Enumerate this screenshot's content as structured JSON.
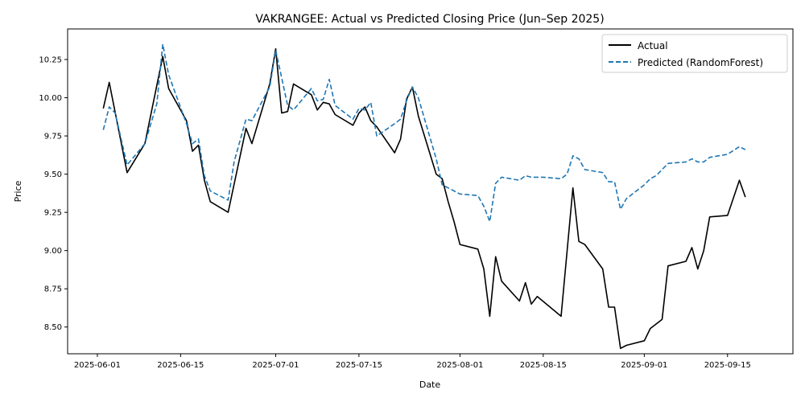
{
  "chart_data": {
    "type": "line",
    "title": "VAKRANGEE: Actual vs Predicted Closing Price (Jun–Sep 2025)",
    "xlabel": "Date",
    "ylabel": "Price",
    "xlim": [
      "2025-05-27",
      "2025-09-26"
    ],
    "ylim": [
      8.325,
      10.45
    ],
    "x_ticks": [
      "2025-06-01",
      "2025-06-15",
      "2025-07-01",
      "2025-07-15",
      "2025-08-01",
      "2025-08-15",
      "2025-09-01",
      "2025-09-15"
    ],
    "y_ticks": [
      8.5,
      8.75,
      9.0,
      9.25,
      9.5,
      9.75,
      10.0,
      10.25
    ],
    "y_tick_labels": [
      "8.50",
      "8.75",
      "9.00",
      "9.25",
      "9.50",
      "9.75",
      "10.00",
      "10.25"
    ],
    "grid": false,
    "legend_position": "top-right",
    "series": [
      {
        "name": "Actual",
        "color": "#000000",
        "style": "solid",
        "points": [
          [
            "2025-06-02",
            9.93
          ],
          [
            "2025-06-03",
            10.1
          ],
          [
            "2025-06-06",
            9.51
          ],
          [
            "2025-06-09",
            9.7
          ],
          [
            "2025-06-12",
            10.27
          ],
          [
            "2025-06-13",
            10.06
          ],
          [
            "2025-06-16",
            9.85
          ],
          [
            "2025-06-17",
            9.65
          ],
          [
            "2025-06-18",
            9.69
          ],
          [
            "2025-06-19",
            9.46
          ],
          [
            "2025-06-20",
            9.32
          ],
          [
            "2025-06-23",
            9.25
          ],
          [
            "2025-06-26",
            9.8
          ],
          [
            "2025-06-27",
            9.7
          ],
          [
            "2025-06-30",
            10.09
          ],
          [
            "2025-07-01",
            10.32
          ],
          [
            "2025-07-02",
            9.9
          ],
          [
            "2025-07-03",
            9.91
          ],
          [
            "2025-07-04",
            10.09
          ],
          [
            "2025-07-07",
            10.02
          ],
          [
            "2025-07-08",
            9.92
          ],
          [
            "2025-07-09",
            9.97
          ],
          [
            "2025-07-10",
            9.96
          ],
          [
            "2025-07-11",
            9.89
          ],
          [
            "2025-07-14",
            9.82
          ],
          [
            "2025-07-15",
            9.9
          ],
          [
            "2025-07-16",
            9.94
          ],
          [
            "2025-07-17",
            9.85
          ],
          [
            "2025-07-18",
            9.81
          ],
          [
            "2025-07-21",
            9.64
          ],
          [
            "2025-07-22",
            9.73
          ],
          [
            "2025-07-23",
            9.99
          ],
          [
            "2025-07-24",
            10.07
          ],
          [
            "2025-07-25",
            9.88
          ],
          [
            "2025-07-28",
            9.5
          ],
          [
            "2025-07-29",
            9.47
          ],
          [
            "2025-07-30",
            9.32
          ],
          [
            "2025-07-31",
            9.19
          ],
          [
            "2025-08-01",
            9.04
          ],
          [
            "2025-08-04",
            9.01
          ],
          [
            "2025-08-05",
            8.88
          ],
          [
            "2025-08-06",
            8.57
          ],
          [
            "2025-08-07",
            8.96
          ],
          [
            "2025-08-08",
            8.8
          ],
          [
            "2025-08-11",
            8.67
          ],
          [
            "2025-08-12",
            8.79
          ],
          [
            "2025-08-13",
            8.65
          ],
          [
            "2025-08-14",
            8.7
          ],
          [
            "2025-08-18",
            8.57
          ],
          [
            "2025-08-20",
            9.41
          ],
          [
            "2025-08-21",
            9.06
          ],
          [
            "2025-08-22",
            9.04
          ],
          [
            "2025-08-25",
            8.88
          ],
          [
            "2025-08-26",
            8.63
          ],
          [
            "2025-08-27",
            8.63
          ],
          [
            "2025-08-28",
            8.36
          ],
          [
            "2025-08-29",
            8.38
          ],
          [
            "2025-09-01",
            8.41
          ],
          [
            "2025-09-02",
            8.49
          ],
          [
            "2025-09-04",
            8.55
          ],
          [
            "2025-09-05",
            8.9
          ],
          [
            "2025-09-08",
            8.93
          ],
          [
            "2025-09-09",
            9.02
          ],
          [
            "2025-09-10",
            8.88
          ],
          [
            "2025-09-11",
            9.0
          ],
          [
            "2025-09-12",
            9.22
          ],
          [
            "2025-09-15",
            9.23
          ],
          [
            "2025-09-17",
            9.46
          ],
          [
            "2025-09-18",
            9.35
          ]
        ]
      },
      {
        "name": "Predicted (RandomForest)",
        "color": "#1f77b4",
        "style": "dashed",
        "points": [
          [
            "2025-06-02",
            9.79
          ],
          [
            "2025-06-03",
            9.94
          ],
          [
            "2025-06-04",
            9.9
          ],
          [
            "2025-06-06",
            9.56
          ],
          [
            "2025-06-09",
            9.7
          ],
          [
            "2025-06-11",
            9.96
          ],
          [
            "2025-06-12",
            10.35
          ],
          [
            "2025-06-13",
            10.15
          ],
          [
            "2025-06-16",
            9.83
          ],
          [
            "2025-06-17",
            9.7
          ],
          [
            "2025-06-18",
            9.73
          ],
          [
            "2025-06-19",
            9.49
          ],
          [
            "2025-06-20",
            9.39
          ],
          [
            "2025-06-23",
            9.33
          ],
          [
            "2025-06-24",
            9.58
          ],
          [
            "2025-06-26",
            9.86
          ],
          [
            "2025-06-27",
            9.85
          ],
          [
            "2025-06-30",
            10.07
          ],
          [
            "2025-07-01",
            10.31
          ],
          [
            "2025-07-02",
            10.13
          ],
          [
            "2025-07-03",
            9.95
          ],
          [
            "2025-07-04",
            9.92
          ],
          [
            "2025-07-07",
            10.06
          ],
          [
            "2025-07-08",
            9.98
          ],
          [
            "2025-07-09",
            9.99
          ],
          [
            "2025-07-10",
            10.12
          ],
          [
            "2025-07-11",
            9.95
          ],
          [
            "2025-07-14",
            9.86
          ],
          [
            "2025-07-15",
            9.93
          ],
          [
            "2025-07-16",
            9.92
          ],
          [
            "2025-07-17",
            9.97
          ],
          [
            "2025-07-18",
            9.75
          ],
          [
            "2025-07-21",
            9.83
          ],
          [
            "2025-07-22",
            9.86
          ],
          [
            "2025-07-23",
            9.98
          ],
          [
            "2025-07-24",
            10.07
          ],
          [
            "2025-07-25",
            10.0
          ],
          [
            "2025-07-28",
            9.6
          ],
          [
            "2025-07-29",
            9.43
          ],
          [
            "2025-07-30",
            9.41
          ],
          [
            "2025-08-01",
            9.37
          ],
          [
            "2025-08-04",
            9.36
          ],
          [
            "2025-08-05",
            9.29
          ],
          [
            "2025-08-06",
            9.19
          ],
          [
            "2025-08-07",
            9.44
          ],
          [
            "2025-08-08",
            9.48
          ],
          [
            "2025-08-11",
            9.46
          ],
          [
            "2025-08-12",
            9.49
          ],
          [
            "2025-08-13",
            9.48
          ],
          [
            "2025-08-15",
            9.48
          ],
          [
            "2025-08-18",
            9.47
          ],
          [
            "2025-08-19",
            9.5
          ],
          [
            "2025-08-20",
            9.62
          ],
          [
            "2025-08-21",
            9.6
          ],
          [
            "2025-08-22",
            9.53
          ],
          [
            "2025-08-25",
            9.51
          ],
          [
            "2025-08-26",
            9.45
          ],
          [
            "2025-08-27",
            9.45
          ],
          [
            "2025-08-28",
            9.27
          ],
          [
            "2025-08-29",
            9.34
          ],
          [
            "2025-09-01",
            9.43
          ],
          [
            "2025-09-02",
            9.47
          ],
          [
            "2025-09-03",
            9.49
          ],
          [
            "2025-09-05",
            9.57
          ],
          [
            "2025-09-08",
            9.58
          ],
          [
            "2025-09-09",
            9.6
          ],
          [
            "2025-09-10",
            9.58
          ],
          [
            "2025-09-11",
            9.58
          ],
          [
            "2025-09-12",
            9.61
          ],
          [
            "2025-09-15",
            9.63
          ],
          [
            "2025-09-17",
            9.68
          ],
          [
            "2025-09-18",
            9.66
          ]
        ]
      }
    ]
  }
}
